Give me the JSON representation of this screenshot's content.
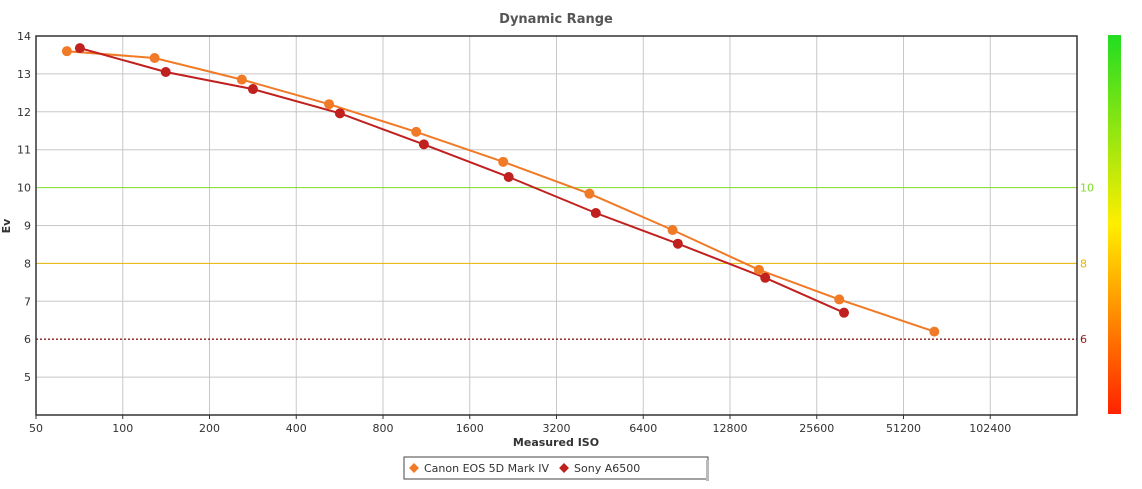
{
  "chart_data": {
    "type": "line",
    "title": "Dynamic Range",
    "xlabel": "Measured ISO",
    "ylabel": "Ev",
    "x_scale": "log2",
    "xlim": [
      50,
      204800
    ],
    "x_ticks": [
      50,
      100,
      200,
      400,
      800,
      1600,
      3200,
      6400,
      12800,
      25600,
      51200,
      102400
    ],
    "ylim": [
      4,
      14
    ],
    "y_ticks": [
      5,
      6,
      7,
      8,
      9,
      10,
      11,
      12,
      13,
      14
    ],
    "grid": true,
    "legend_position": "bottom-center",
    "reference_lines": [
      {
        "value": 10,
        "label": "10",
        "color": "#7fdc2a"
      },
      {
        "value": 8,
        "label": "8",
        "color": "#e3b300"
      },
      {
        "value": 6,
        "label": "6",
        "color": "#8b1a1a"
      }
    ],
    "color_scale": {
      "top": "#22dd22",
      "middle": "#ffee00",
      "bottom": "#ff2200"
    },
    "series": [
      {
        "name": "Canon EOS 5D Mark IV",
        "color": "#f07a26",
        "points": [
          [
            64,
            13.6
          ],
          [
            129,
            13.42
          ],
          [
            259,
            12.85
          ],
          [
            520,
            12.2
          ],
          [
            1043,
            11.47
          ],
          [
            2090,
            10.68
          ],
          [
            4164,
            9.84
          ],
          [
            8090,
            8.88
          ],
          [
            16130,
            7.83
          ],
          [
            30640,
            7.05
          ],
          [
            65500,
            6.2
          ]
        ]
      },
      {
        "name": "Sony A6500",
        "color": "#c0201e",
        "points": [
          [
            71,
            13.68
          ],
          [
            141,
            13.05
          ],
          [
            283,
            12.6
          ],
          [
            567,
            11.96
          ],
          [
            1109,
            11.14
          ],
          [
            2184,
            10.28
          ],
          [
            4381,
            9.33
          ],
          [
            8440,
            8.52
          ],
          [
            16960,
            7.62
          ],
          [
            31830,
            6.7
          ]
        ]
      }
    ]
  }
}
